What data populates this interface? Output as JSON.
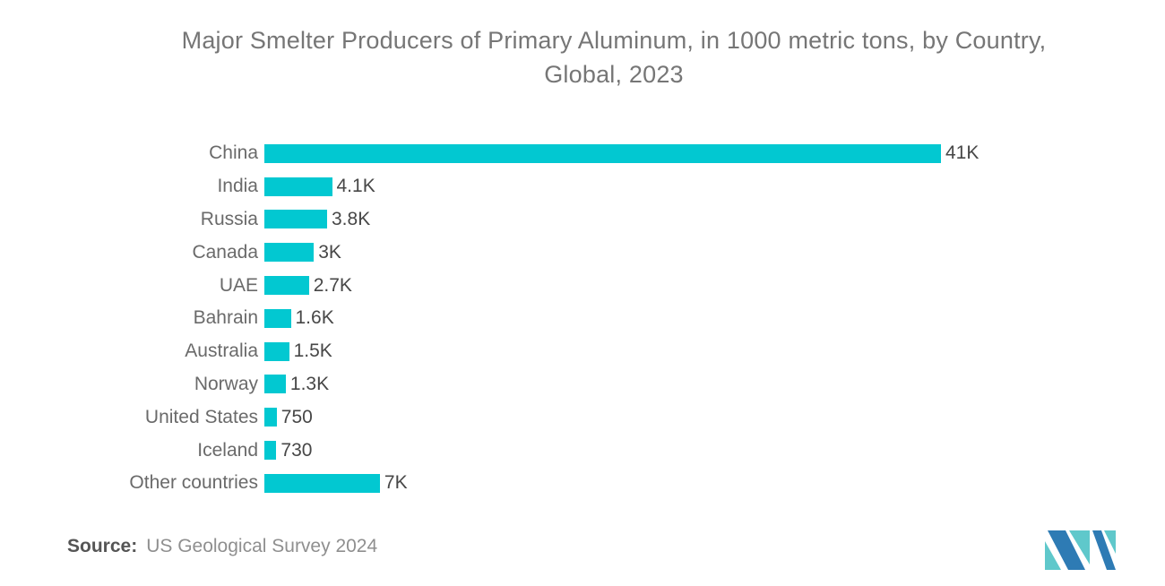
{
  "title": {
    "line1": "Major Smelter Producers of Primary Aluminum, in 1000 metric tons, by Country,",
    "line2": "Global, 2023"
  },
  "chart_data": {
    "type": "bar",
    "orientation": "horizontal",
    "title": "Major Smelter Producers of Primary Aluminum, in 1000 metric tons, by Country, Global, 2023",
    "categories": [
      "China",
      "India",
      "Russia",
      "Canada",
      "UAE",
      "Bahrain",
      "Australia",
      "Norway",
      "United States",
      "Iceland",
      "Other countries"
    ],
    "values": [
      41000,
      4100,
      3800,
      3000,
      2700,
      1600,
      1500,
      1300,
      750,
      730,
      7000
    ],
    "value_labels": [
      "41K",
      "4.1K",
      "3.8K",
      "3K",
      "2.7K",
      "1.6K",
      "1.5K",
      "1.3K",
      "750",
      "730",
      "7K"
    ],
    "unit": "1000 metric tons",
    "xlim": [
      0,
      41000
    ],
    "grid": false,
    "legend": null,
    "bar_color": "#02C8D1",
    "category_label_color": "#6a6a6a",
    "value_label_color": "#474747"
  },
  "source": {
    "label": "Source:",
    "text": "US Geological Survey 2024"
  },
  "logo": {
    "name": "mordor-intelligence-logo",
    "colors": {
      "blue": "#2E7BB4",
      "teal": "#5FC8CB"
    }
  }
}
